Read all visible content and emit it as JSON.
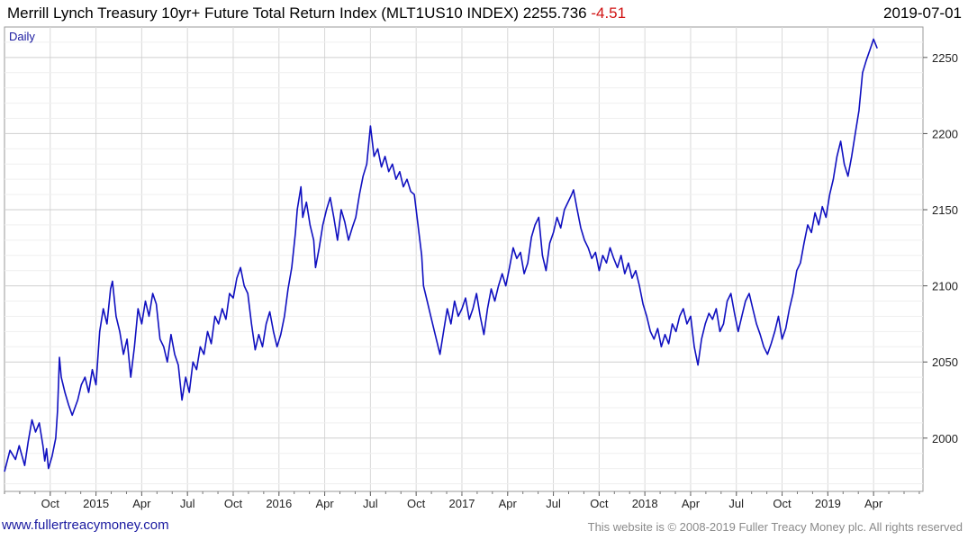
{
  "header": {
    "title": "Merrill Lynch Treasury 10yr+ Future Total Return Index (MLT1US10 INDEX) 2255.736",
    "change": "-4.51",
    "date": "2019-07-01"
  },
  "footer": {
    "site": "www.fullertreacymoney.com",
    "copyright": "This website is © 2008-2019 Fuller Treacy Money plc. All rights reserved"
  },
  "colors": {
    "line": "#1010c0",
    "grid": "#d8d8d8",
    "change": "#d01010"
  },
  "chart_data": {
    "type": "line",
    "title": "Merrill Lynch Treasury 10yr+ Future Total Return Index (MLT1US10 INDEX)",
    "period_label": "Daily",
    "xlabel": "",
    "ylabel": "",
    "ylim": [
      1965,
      2270
    ],
    "y_ticks": [
      2000,
      2050,
      2100,
      2150,
      2200,
      2250
    ],
    "xlim": [
      2014.5,
      2019.52
    ],
    "x_ticks": [
      {
        "label": "Oct",
        "t": 2014.75
      },
      {
        "label": "2015",
        "t": 2015.0
      },
      {
        "label": "Apr",
        "t": 2015.25
      },
      {
        "label": "Jul",
        "t": 2015.5
      },
      {
        "label": "Oct",
        "t": 2015.75
      },
      {
        "label": "2016",
        "t": 2016.0
      },
      {
        "label": "Apr",
        "t": 2016.25
      },
      {
        "label": "Jul",
        "t": 2016.5
      },
      {
        "label": "Oct",
        "t": 2016.75
      },
      {
        "label": "2017",
        "t": 2017.0
      },
      {
        "label": "Apr",
        "t": 2017.25
      },
      {
        "label": "Jul",
        "t": 2017.5
      },
      {
        "label": "Oct",
        "t": 2017.75
      },
      {
        "label": "2018",
        "t": 2018.0
      },
      {
        "label": "Apr",
        "t": 2018.25
      },
      {
        "label": "Jul",
        "t": 2018.5
      },
      {
        "label": "Oct",
        "t": 2018.75
      },
      {
        "label": "2019",
        "t": 2019.0
      },
      {
        "label": "Apr",
        "t": 2019.25
      }
    ],
    "series": [
      {
        "name": "MLT1US10 INDEX",
        "points": [
          [
            2014.5,
            1978
          ],
          [
            2014.53,
            1992
          ],
          [
            2014.56,
            1986
          ],
          [
            2014.58,
            1995
          ],
          [
            2014.61,
            1982
          ],
          [
            2014.63,
            1998
          ],
          [
            2014.65,
            2012
          ],
          [
            2014.67,
            2004
          ],
          [
            2014.69,
            2010
          ],
          [
            2014.71,
            1995
          ],
          [
            2014.72,
            1985
          ],
          [
            2014.73,
            1993
          ],
          [
            2014.74,
            1980
          ],
          [
            2014.76,
            1988
          ],
          [
            2014.78,
            2000
          ],
          [
            2014.79,
            2018
          ],
          [
            2014.8,
            2053
          ],
          [
            2014.81,
            2040
          ],
          [
            2014.83,
            2030
          ],
          [
            2014.85,
            2022
          ],
          [
            2014.87,
            2015
          ],
          [
            2014.9,
            2025
          ],
          [
            2014.92,
            2035
          ],
          [
            2014.94,
            2040
          ],
          [
            2014.96,
            2030
          ],
          [
            2014.98,
            2045
          ],
          [
            2015.0,
            2035
          ],
          [
            2015.02,
            2070
          ],
          [
            2015.04,
            2085
          ],
          [
            2015.06,
            2075
          ],
          [
            2015.08,
            2098
          ],
          [
            2015.09,
            2103
          ],
          [
            2015.11,
            2080
          ],
          [
            2015.13,
            2070
          ],
          [
            2015.15,
            2055
          ],
          [
            2015.17,
            2065
          ],
          [
            2015.19,
            2040
          ],
          [
            2015.21,
            2060
          ],
          [
            2015.23,
            2085
          ],
          [
            2015.25,
            2075
          ],
          [
            2015.27,
            2090
          ],
          [
            2015.29,
            2080
          ],
          [
            2015.31,
            2095
          ],
          [
            2015.33,
            2088
          ],
          [
            2015.35,
            2065
          ],
          [
            2015.37,
            2060
          ],
          [
            2015.39,
            2050
          ],
          [
            2015.41,
            2068
          ],
          [
            2015.43,
            2055
          ],
          [
            2015.45,
            2048
          ],
          [
            2015.47,
            2025
          ],
          [
            2015.49,
            2040
          ],
          [
            2015.51,
            2030
          ],
          [
            2015.53,
            2050
          ],
          [
            2015.55,
            2045
          ],
          [
            2015.57,
            2060
          ],
          [
            2015.59,
            2055
          ],
          [
            2015.61,
            2070
          ],
          [
            2015.63,
            2062
          ],
          [
            2015.65,
            2080
          ],
          [
            2015.67,
            2075
          ],
          [
            2015.69,
            2085
          ],
          [
            2015.71,
            2078
          ],
          [
            2015.73,
            2095
          ],
          [
            2015.75,
            2092
          ],
          [
            2015.77,
            2105
          ],
          [
            2015.79,
            2112
          ],
          [
            2015.81,
            2100
          ],
          [
            2015.83,
            2095
          ],
          [
            2015.85,
            2075
          ],
          [
            2015.87,
            2058
          ],
          [
            2015.89,
            2068
          ],
          [
            2015.91,
            2060
          ],
          [
            2015.93,
            2075
          ],
          [
            2015.95,
            2083
          ],
          [
            2015.97,
            2070
          ],
          [
            2015.99,
            2060
          ],
          [
            2016.01,
            2068
          ],
          [
            2016.03,
            2080
          ],
          [
            2016.05,
            2098
          ],
          [
            2016.07,
            2112
          ],
          [
            2016.09,
            2135
          ],
          [
            2016.1,
            2150
          ],
          [
            2016.12,
            2165
          ],
          [
            2016.13,
            2145
          ],
          [
            2016.15,
            2155
          ],
          [
            2016.17,
            2140
          ],
          [
            2016.19,
            2130
          ],
          [
            2016.2,
            2112
          ],
          [
            2016.22,
            2125
          ],
          [
            2016.24,
            2140
          ],
          [
            2016.26,
            2150
          ],
          [
            2016.28,
            2158
          ],
          [
            2016.3,
            2145
          ],
          [
            2016.32,
            2130
          ],
          [
            2016.34,
            2150
          ],
          [
            2016.36,
            2142
          ],
          [
            2016.38,
            2130
          ],
          [
            2016.4,
            2138
          ],
          [
            2016.42,
            2145
          ],
          [
            2016.44,
            2160
          ],
          [
            2016.46,
            2172
          ],
          [
            2016.48,
            2180
          ],
          [
            2016.5,
            2205
          ],
          [
            2016.51,
            2195
          ],
          [
            2016.52,
            2185
          ],
          [
            2016.54,
            2190
          ],
          [
            2016.56,
            2178
          ],
          [
            2016.58,
            2185
          ],
          [
            2016.6,
            2175
          ],
          [
            2016.62,
            2180
          ],
          [
            2016.64,
            2170
          ],
          [
            2016.66,
            2175
          ],
          [
            2016.68,
            2165
          ],
          [
            2016.7,
            2170
          ],
          [
            2016.72,
            2162
          ],
          [
            2016.74,
            2160
          ],
          [
            2016.76,
            2140
          ],
          [
            2016.78,
            2120
          ],
          [
            2016.79,
            2100
          ],
          [
            2016.81,
            2090
          ],
          [
            2016.83,
            2080
          ],
          [
            2016.85,
            2070
          ],
          [
            2016.87,
            2060
          ],
          [
            2016.88,
            2055
          ],
          [
            2016.9,
            2070
          ],
          [
            2016.92,
            2085
          ],
          [
            2016.94,
            2075
          ],
          [
            2016.96,
            2090
          ],
          [
            2016.98,
            2080
          ],
          [
            2017.0,
            2085
          ],
          [
            2017.02,
            2092
          ],
          [
            2017.04,
            2078
          ],
          [
            2017.06,
            2085
          ],
          [
            2017.08,
            2095
          ],
          [
            2017.1,
            2080
          ],
          [
            2017.12,
            2068
          ],
          [
            2017.14,
            2085
          ],
          [
            2017.16,
            2098
          ],
          [
            2017.18,
            2090
          ],
          [
            2017.2,
            2100
          ],
          [
            2017.22,
            2108
          ],
          [
            2017.24,
            2100
          ],
          [
            2017.26,
            2112
          ],
          [
            2017.28,
            2125
          ],
          [
            2017.3,
            2118
          ],
          [
            2017.32,
            2122
          ],
          [
            2017.34,
            2108
          ],
          [
            2017.36,
            2115
          ],
          [
            2017.38,
            2132
          ],
          [
            2017.4,
            2140
          ],
          [
            2017.42,
            2145
          ],
          [
            2017.44,
            2120
          ],
          [
            2017.46,
            2110
          ],
          [
            2017.48,
            2128
          ],
          [
            2017.5,
            2135
          ],
          [
            2017.52,
            2145
          ],
          [
            2017.54,
            2138
          ],
          [
            2017.56,
            2150
          ],
          [
            2017.58,
            2155
          ],
          [
            2017.6,
            2160
          ],
          [
            2017.61,
            2163
          ],
          [
            2017.63,
            2150
          ],
          [
            2017.65,
            2138
          ],
          [
            2017.67,
            2130
          ],
          [
            2017.69,
            2125
          ],
          [
            2017.71,
            2118
          ],
          [
            2017.73,
            2122
          ],
          [
            2017.75,
            2110
          ],
          [
            2017.77,
            2120
          ],
          [
            2017.79,
            2115
          ],
          [
            2017.81,
            2125
          ],
          [
            2017.83,
            2118
          ],
          [
            2017.85,
            2112
          ],
          [
            2017.87,
            2120
          ],
          [
            2017.89,
            2108
          ],
          [
            2017.91,
            2115
          ],
          [
            2017.93,
            2105
          ],
          [
            2017.95,
            2110
          ],
          [
            2017.97,
            2100
          ],
          [
            2017.99,
            2088
          ],
          [
            2018.01,
            2080
          ],
          [
            2018.03,
            2070
          ],
          [
            2018.05,
            2065
          ],
          [
            2018.07,
            2072
          ],
          [
            2018.09,
            2060
          ],
          [
            2018.11,
            2068
          ],
          [
            2018.13,
            2062
          ],
          [
            2018.15,
            2075
          ],
          [
            2018.17,
            2070
          ],
          [
            2018.19,
            2080
          ],
          [
            2018.21,
            2085
          ],
          [
            2018.23,
            2075
          ],
          [
            2018.25,
            2080
          ],
          [
            2018.27,
            2060
          ],
          [
            2018.29,
            2048
          ],
          [
            2018.31,
            2065
          ],
          [
            2018.33,
            2075
          ],
          [
            2018.35,
            2082
          ],
          [
            2018.37,
            2078
          ],
          [
            2018.39,
            2085
          ],
          [
            2018.41,
            2070
          ],
          [
            2018.43,
            2075
          ],
          [
            2018.45,
            2090
          ],
          [
            2018.47,
            2095
          ],
          [
            2018.49,
            2082
          ],
          [
            2018.51,
            2070
          ],
          [
            2018.53,
            2080
          ],
          [
            2018.55,
            2090
          ],
          [
            2018.57,
            2095
          ],
          [
            2018.59,
            2085
          ],
          [
            2018.61,
            2075
          ],
          [
            2018.63,
            2068
          ],
          [
            2018.65,
            2060
          ],
          [
            2018.67,
            2055
          ],
          [
            2018.69,
            2062
          ],
          [
            2018.71,
            2070
          ],
          [
            2018.73,
            2080
          ],
          [
            2018.75,
            2065
          ],
          [
            2018.77,
            2072
          ],
          [
            2018.79,
            2085
          ],
          [
            2018.81,
            2095
          ],
          [
            2018.83,
            2110
          ],
          [
            2018.85,
            2115
          ],
          [
            2018.87,
            2128
          ],
          [
            2018.89,
            2140
          ],
          [
            2018.91,
            2135
          ],
          [
            2018.93,
            2148
          ],
          [
            2018.95,
            2140
          ],
          [
            2018.97,
            2152
          ],
          [
            2018.99,
            2145
          ],
          [
            2019.01,
            2160
          ],
          [
            2019.03,
            2170
          ],
          [
            2019.05,
            2185
          ],
          [
            2019.07,
            2195
          ],
          [
            2019.09,
            2180
          ],
          [
            2019.11,
            2172
          ],
          [
            2019.13,
            2185
          ],
          [
            2019.15,
            2200
          ],
          [
            2019.17,
            2215
          ],
          [
            2019.19,
            2240
          ],
          [
            2019.21,
            2248
          ],
          [
            2019.23,
            2255
          ],
          [
            2019.25,
            2262
          ],
          [
            2019.27,
            2256
          ]
        ]
      }
    ]
  }
}
